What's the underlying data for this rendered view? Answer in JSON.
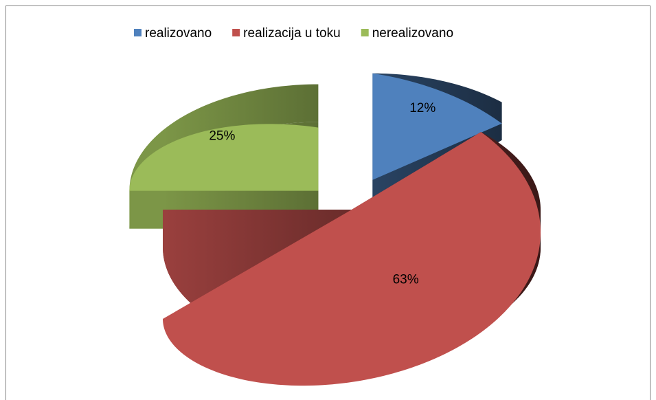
{
  "chart_data": {
    "type": "pie",
    "categories": [
      "realizovano",
      "realizacija u toku",
      "nerealizovano"
    ],
    "values": [
      12,
      63,
      25
    ],
    "value_labels": [
      "12%",
      "63%",
      "25%"
    ],
    "colors": [
      "#4f81bd",
      "#c0504d",
      "#9bbb59"
    ],
    "legend": "top"
  }
}
